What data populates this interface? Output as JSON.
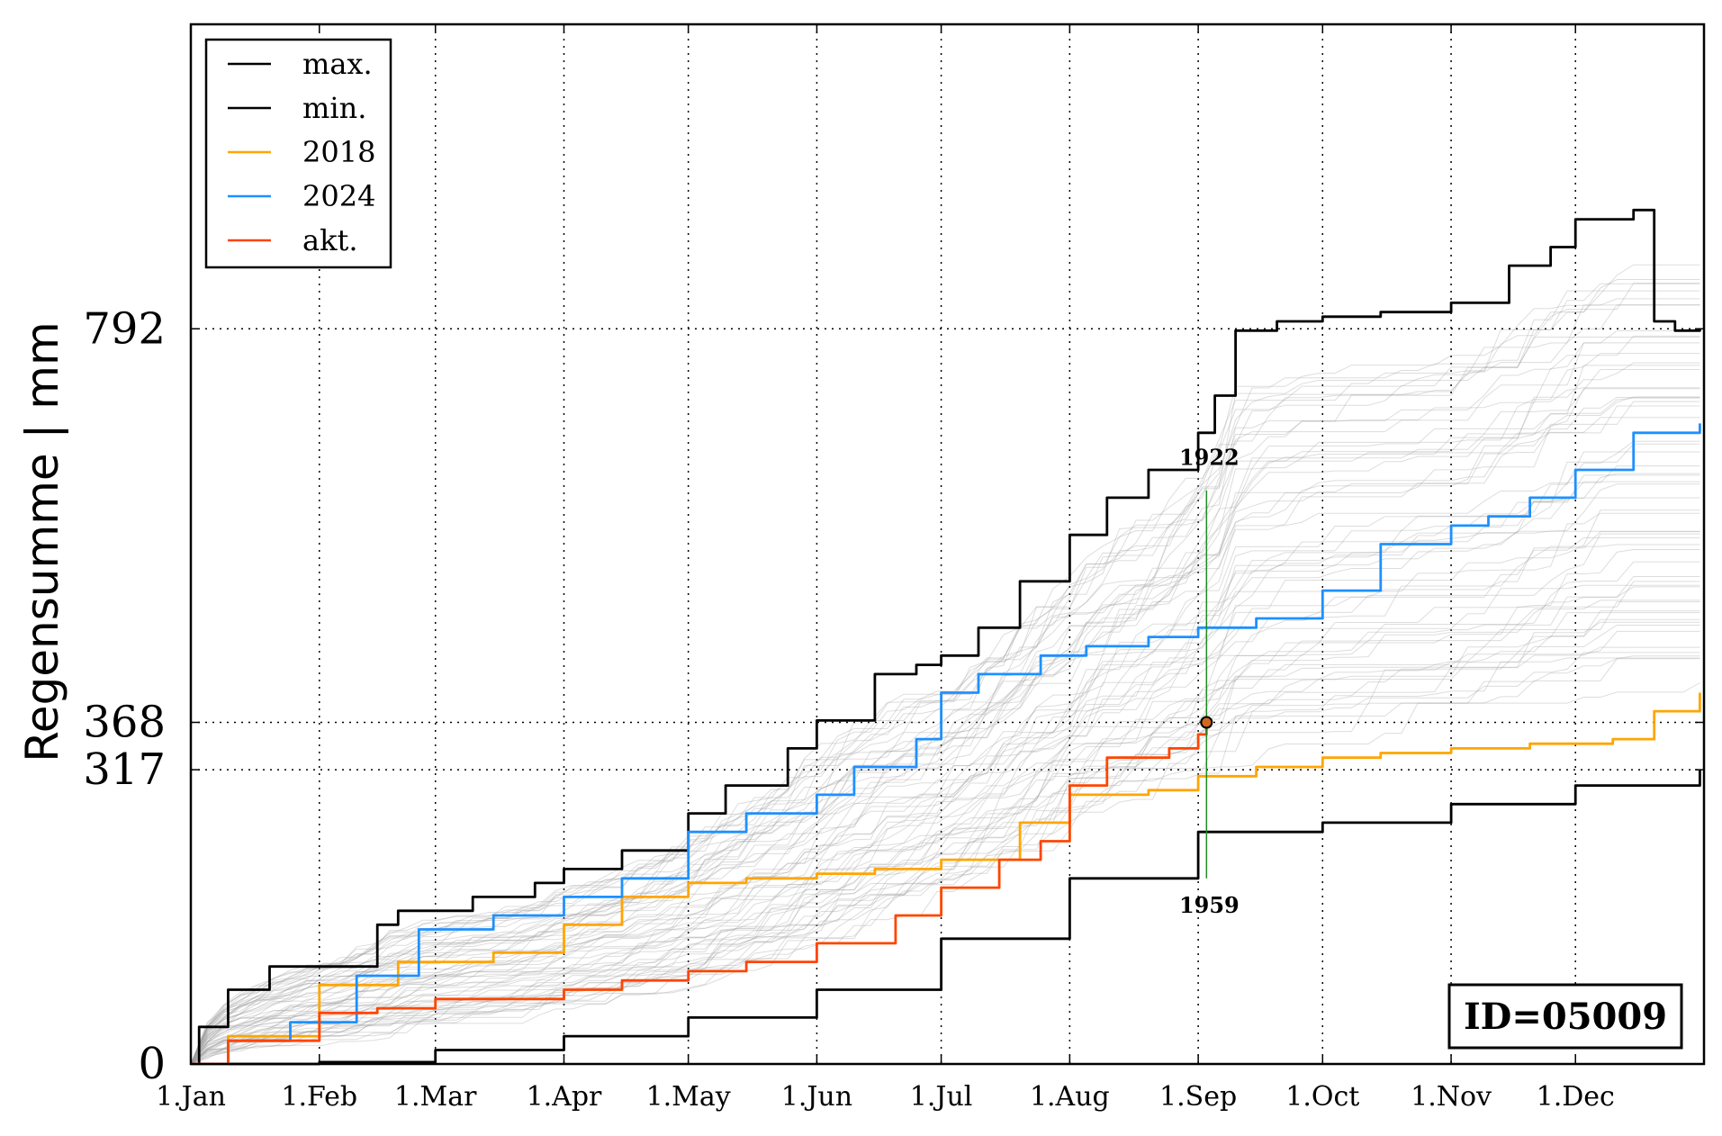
{
  "chart_data": {
    "type": "line",
    "title": "",
    "xlabel": "",
    "ylabel": "Regensumme | mm",
    "xlim": [
      "01-01",
      "12-31"
    ],
    "ylim": [
      0,
      1120
    ],
    "grid": true,
    "legend_position": "top-left",
    "id_label": "ID=05009",
    "x_ticks": [
      {
        "label": "1.Jan",
        "day": 1
      },
      {
        "label": "1.Feb",
        "day": 32
      },
      {
        "label": "1.Mar",
        "day": 60
      },
      {
        "label": "1.Apr",
        "day": 91
      },
      {
        "label": "1.May",
        "day": 121
      },
      {
        "label": "1.Jun",
        "day": 152
      },
      {
        "label": "1.Jul",
        "day": 182
      },
      {
        "label": "1.Aug",
        "day": 213
      },
      {
        "label": "1.Sep",
        "day": 244
      },
      {
        "label": "1.Oct",
        "day": 274
      },
      {
        "label": "1.Nov",
        "day": 305
      },
      {
        "label": "1.Dec",
        "day": 335
      }
    ],
    "y_ticks": [
      {
        "label": "0",
        "value": 0
      },
      {
        "label": "317",
        "value": 317
      },
      {
        "label": "368",
        "value": 368
      },
      {
        "label": "792",
        "value": 792
      }
    ],
    "series": [
      {
        "name": "max.",
        "color": "#000000",
        "x": [
          "01-01",
          "01-03",
          "01-10",
          "01-20",
          "02-15",
          "02-20",
          "03-10",
          "03-25",
          "04-01",
          "04-15",
          "05-01",
          "05-10",
          "05-25",
          "06-01",
          "06-15",
          "06-25",
          "07-01",
          "07-10",
          "07-20",
          "08-01",
          "08-10",
          "08-20",
          "09-01",
          "09-05",
          "09-10",
          "09-20",
          "10-01",
          "10-15",
          "11-01",
          "11-15",
          "11-25",
          "12-01",
          "12-15",
          "12-20",
          "12-25",
          "12-31"
        ],
        "y": [
          0,
          40,
          80,
          105,
          150,
          165,
          180,
          195,
          210,
          230,
          270,
          300,
          340,
          370,
          420,
          430,
          440,
          470,
          520,
          570,
          610,
          640,
          680,
          720,
          790,
          800,
          805,
          810,
          820,
          860,
          880,
          910,
          920,
          800,
          790,
          792
        ]
      },
      {
        "name": "min.",
        "color": "#000000",
        "x": [
          "01-01",
          "02-01",
          "03-01",
          "04-01",
          "05-01",
          "06-01",
          "07-01",
          "08-01",
          "09-01",
          "10-01",
          "11-01",
          "12-01",
          "12-31"
        ],
        "y": [
          0,
          2,
          15,
          30,
          50,
          80,
          135,
          200,
          250,
          260,
          280,
          300,
          317
        ]
      },
      {
        "name": "2018",
        "color": "#ffa500",
        "x": [
          "01-01",
          "01-10",
          "02-01",
          "02-20",
          "03-15",
          "04-01",
          "04-15",
          "05-01",
          "05-15",
          "06-01",
          "06-15",
          "07-01",
          "07-20",
          "08-01",
          "08-20",
          "09-01",
          "09-15",
          "10-01",
          "10-15",
          "11-01",
          "11-20",
          "12-10",
          "12-20",
          "12-31"
        ],
        "y": [
          0,
          30,
          85,
          110,
          120,
          150,
          180,
          195,
          200,
          205,
          210,
          220,
          260,
          290,
          295,
          310,
          320,
          330,
          335,
          340,
          345,
          350,
          380,
          400
        ]
      },
      {
        "name": "2024",
        "color": "#1e90ff",
        "x": [
          "01-01",
          "01-10",
          "01-25",
          "02-10",
          "02-25",
          "03-15",
          "04-01",
          "04-15",
          "05-01",
          "05-15",
          "06-01",
          "06-10",
          "06-25",
          "07-01",
          "07-10",
          "07-25",
          "08-05",
          "08-20",
          "09-01",
          "09-15",
          "10-01",
          "10-15",
          "11-01",
          "11-10",
          "11-20",
          "12-01",
          "12-15",
          "12-31"
        ],
        "y": [
          0,
          25,
          45,
          95,
          145,
          160,
          180,
          200,
          250,
          270,
          290,
          320,
          350,
          400,
          420,
          440,
          450,
          460,
          470,
          480,
          510,
          560,
          580,
          590,
          610,
          640,
          680,
          690
        ]
      },
      {
        "name": "akt.",
        "color": "#ff4500",
        "x": [
          "01-01",
          "01-10",
          "02-01",
          "02-15",
          "03-01",
          "04-01",
          "04-15",
          "05-01",
          "05-15",
          "06-01",
          "06-20",
          "07-01",
          "07-15",
          "07-25",
          "08-01",
          "08-10",
          "08-25",
          "09-01",
          "09-03"
        ],
        "y": [
          0,
          25,
          55,
          60,
          70,
          80,
          90,
          100,
          110,
          130,
          160,
          190,
          220,
          240,
          300,
          330,
          340,
          355,
          368
        ]
      }
    ],
    "annotations": [
      {
        "text": "1922",
        "x": "09-03",
        "y": 618
      },
      {
        "text": "1959",
        "x": "09-03",
        "y": 200
      }
    ],
    "current_point": {
      "x": "09-03",
      "y": 368
    }
  }
}
